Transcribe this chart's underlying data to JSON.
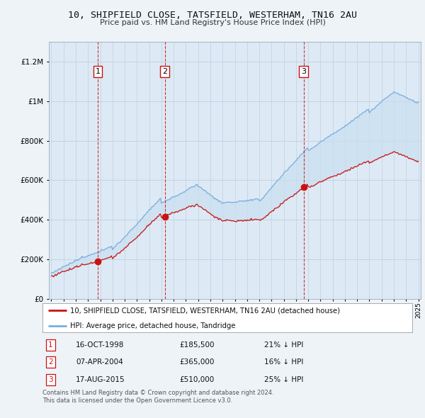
{
  "title_line1": "10, SHIPFIELD CLOSE, TATSFIELD, WESTERHAM, TN16 2AU",
  "title_line2": "Price paid vs. HM Land Registry's House Price Index (HPI)",
  "legend_label_red": "10, SHIPFIELD CLOSE, TATSFIELD, WESTERHAM, TN16 2AU (detached house)",
  "legend_label_blue": "HPI: Average price, detached house, Tandridge",
  "footer_line1": "Contains HM Land Registry data © Crown copyright and database right 2024.",
  "footer_line2": "This data is licensed under the Open Government Licence v3.0.",
  "transactions": [
    {
      "num": 1,
      "date": "16-OCT-1998",
      "price": "£185,500",
      "pct": "21% ↓ HPI",
      "x_year": 1998.79
    },
    {
      "num": 2,
      "date": "07-APR-2004",
      "price": "£365,000",
      "pct": "16% ↓ HPI",
      "x_year": 2004.27
    },
    {
      "num": 3,
      "date": "17-AUG-2015",
      "price": "£510,000",
      "pct": "25% ↓ HPI",
      "x_year": 2015.63
    }
  ],
  "hpi_color": "#7aade0",
  "price_color": "#cc1111",
  "vline_color": "#cc1111",
  "fill_color": "#c8dff0",
  "ylim": [
    0,
    1300000
  ],
  "xlim": [
    1994.8,
    2025.2
  ],
  "background_color": "#eef3f8",
  "plot_bg": "#ddeaf5",
  "grid_color": "#c0cfe0"
}
